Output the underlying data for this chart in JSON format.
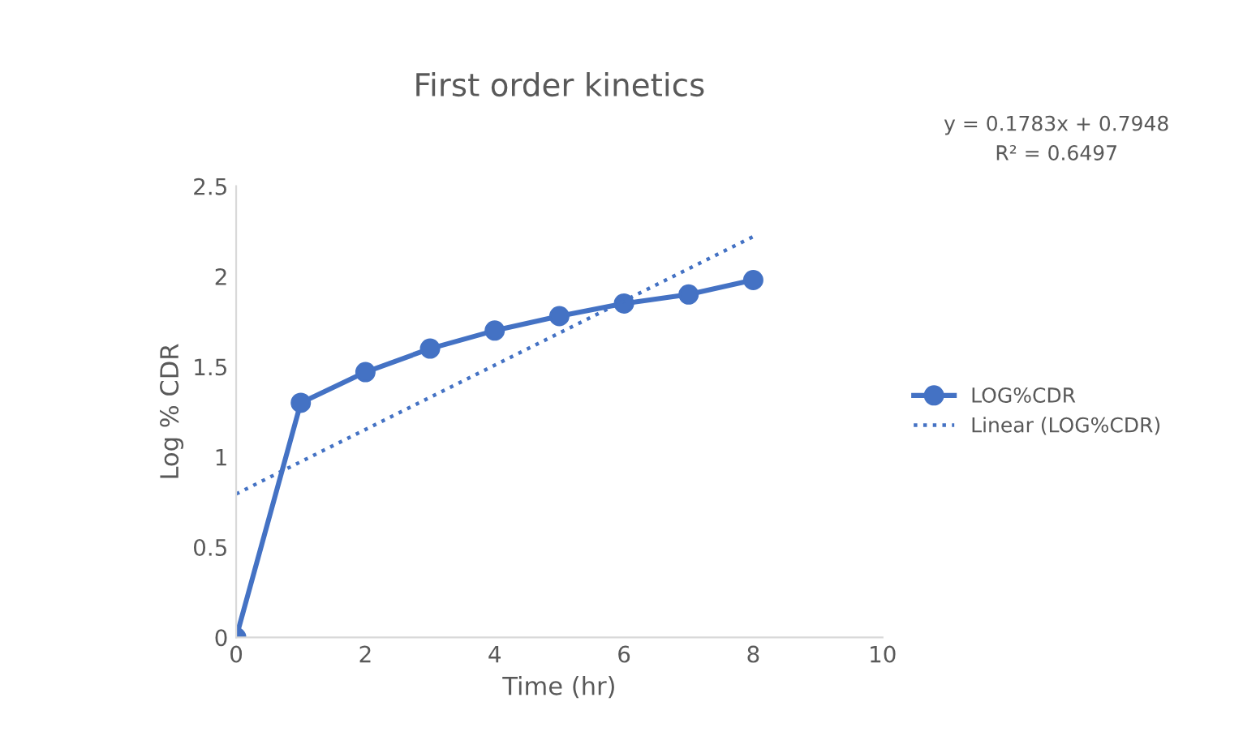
{
  "chart_data": {
    "type": "line",
    "title": "First order kinetics",
    "xlabel": "Time (hr)",
    "ylabel": "Log % CDR",
    "x": [
      0,
      1,
      2,
      3,
      4,
      5,
      6,
      7,
      8
    ],
    "series": [
      {
        "name": "LOG%CDR",
        "color": "#4472c4",
        "values": [
          0,
          1.3,
          1.47,
          1.6,
          1.7,
          1.78,
          1.85,
          1.9,
          1.98
        ],
        "marker": "circle",
        "line_style": "solid"
      },
      {
        "name": "Linear (LOG%CDR)",
        "color": "#4472c4",
        "x": [
          0,
          8
        ],
        "values": [
          0.7948,
          2.2212
        ],
        "marker": "none",
        "line_style": "dotted"
      }
    ],
    "annotations": [
      "y = 0.1783x + 0.7948",
      "R² = 0.6497"
    ],
    "xlim": [
      0,
      10
    ],
    "xticks": [
      0,
      2,
      4,
      6,
      8,
      10
    ],
    "ylim": [
      0,
      2.5
    ],
    "yticks": [
      0,
      0.5,
      1,
      1.5,
      2,
      2.5
    ],
    "grid": false,
    "legend": "right"
  }
}
